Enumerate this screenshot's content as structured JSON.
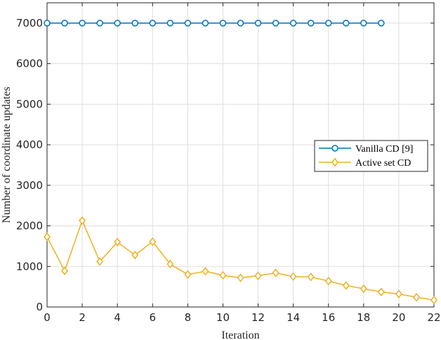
{
  "chart_data": {
    "type": "line",
    "xlabel": "Iteration",
    "ylabel": "Number of coordinate updates",
    "xlim": [
      0,
      22
    ],
    "ylim": [
      0,
      7500
    ],
    "xticks": [
      0,
      2,
      4,
      6,
      8,
      10,
      12,
      14,
      16,
      18,
      20,
      22
    ],
    "yticks": [
      0,
      1000,
      2000,
      3000,
      4000,
      5000,
      6000,
      7000
    ],
    "grid": true,
    "legend_position": "right",
    "series": [
      {
        "name": "Vanilla CD [9]",
        "color": "#0072BD",
        "marker": "circle",
        "x": [
          0,
          1,
          2,
          3,
          4,
          5,
          6,
          7,
          8,
          9,
          10,
          11,
          12,
          13,
          14,
          15,
          16,
          17,
          18,
          19
        ],
        "y": [
          7000,
          7000,
          7000,
          7000,
          7000,
          7000,
          7000,
          7000,
          7000,
          7000,
          7000,
          7000,
          7000,
          7000,
          7000,
          7000,
          7000,
          7000,
          7000,
          7000
        ]
      },
      {
        "name": "Active set CD",
        "color": "#EDB120",
        "marker": "diamond",
        "x": [
          0,
          1,
          2,
          3,
          4,
          5,
          6,
          7,
          8,
          9,
          10,
          11,
          12,
          13,
          14,
          15,
          16,
          17,
          18,
          19,
          20,
          21,
          22
        ],
        "y": [
          1730,
          890,
          2130,
          1120,
          1600,
          1280,
          1610,
          1060,
          800,
          880,
          780,
          720,
          770,
          840,
          750,
          740,
          640,
          530,
          450,
          370,
          320,
          240,
          170
        ]
      }
    ]
  }
}
